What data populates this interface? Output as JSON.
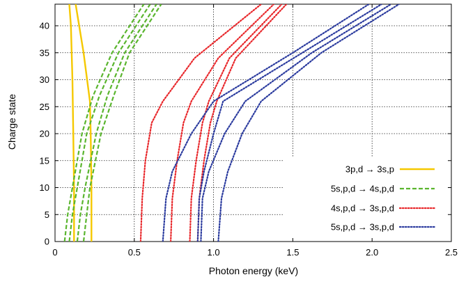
{
  "chart_data": {
    "type": "line",
    "title": "",
    "xlabel": "Photon energy (keV)",
    "ylabel": "Charge state",
    "xlim": [
      0,
      2.5
    ],
    "ylim": [
      0,
      44
    ],
    "xticks": [
      0,
      0.5,
      1.0,
      1.5,
      2.0,
      2.5
    ],
    "xtick_labels": [
      "0",
      "0.5",
      "1.0",
      "1.5",
      "2.0",
      "2.5"
    ],
    "yticks": [
      0,
      5,
      10,
      15,
      20,
      25,
      30,
      35,
      40
    ],
    "ytick_labels": [
      "0",
      "5",
      "10",
      "15",
      "20",
      "25",
      "30",
      "35",
      "40"
    ],
    "grid": true,
    "legend_position": "bottom-right",
    "series": [
      {
        "name": "3p,d → 3s,p",
        "color": "#f5c800",
        "style": "solid",
        "curves": [
          [
            [
              0.12,
              0
            ],
            [
              0.12,
              10
            ],
            [
              0.115,
              20
            ],
            [
              0.11,
              30
            ],
            [
              0.1,
              40
            ],
            [
              0.09,
              44
            ]
          ],
          [
            [
              0.23,
              0
            ],
            [
              0.23,
              10
            ],
            [
              0.225,
              20
            ],
            [
              0.22,
              26
            ],
            [
              0.18,
              35
            ],
            [
              0.13,
              44
            ]
          ]
        ]
      },
      {
        "name": "5s,p,d → 4s,p,d",
        "color": "#5ab52e",
        "style": "dashed",
        "curves": [
          [
            [
              0.06,
              0
            ],
            [
              0.08,
              5
            ],
            [
              0.11,
              10
            ],
            [
              0.17,
              20
            ],
            [
              0.24,
              27
            ],
            [
              0.36,
              35
            ],
            [
              0.56,
              44
            ]
          ],
          [
            [
              0.09,
              0
            ],
            [
              0.11,
              5
            ],
            [
              0.14,
              10
            ],
            [
              0.2,
              20
            ],
            [
              0.28,
              27
            ],
            [
              0.4,
              35
            ],
            [
              0.6,
              44
            ]
          ],
          [
            [
              0.14,
              0
            ],
            [
              0.16,
              5
            ],
            [
              0.19,
              10
            ],
            [
              0.26,
              20
            ],
            [
              0.33,
              27
            ],
            [
              0.44,
              35
            ],
            [
              0.64,
              44
            ]
          ],
          [
            [
              0.18,
              0
            ],
            [
              0.2,
              5
            ],
            [
              0.22,
              10
            ],
            [
              0.29,
              20
            ],
            [
              0.37,
              27
            ],
            [
              0.47,
              35
            ],
            [
              0.67,
              44
            ]
          ]
        ]
      },
      {
        "name": "4s,p,d → 3s,p,d",
        "color": "#e8262a",
        "style": "dotted",
        "curves": [
          [
            [
              0.54,
              0
            ],
            [
              0.55,
              8
            ],
            [
              0.57,
              15
            ],
            [
              0.61,
              22
            ],
            [
              0.68,
              26
            ],
            [
              0.88,
              34
            ],
            [
              1.3,
              44
            ]
          ],
          [
            [
              0.73,
              0
            ],
            [
              0.74,
              8
            ],
            [
              0.77,
              15
            ],
            [
              0.81,
              22
            ],
            [
              0.86,
              26
            ],
            [
              1.03,
              34
            ],
            [
              1.38,
              44
            ]
          ],
          [
            [
              0.85,
              0
            ],
            [
              0.86,
              8
            ],
            [
              0.89,
              15
            ],
            [
              0.93,
              22
            ],
            [
              0.97,
              26
            ],
            [
              1.1,
              34
            ],
            [
              1.43,
              44
            ]
          ],
          [
            [
              0.9,
              0
            ],
            [
              0.91,
              8
            ],
            [
              0.94,
              15
            ],
            [
              0.98,
              22
            ],
            [
              1.02,
              26
            ],
            [
              1.14,
              34
            ],
            [
              1.46,
              44
            ]
          ]
        ]
      },
      {
        "name": "5s,p,d → 3s,p,d",
        "color": "#2a3a9e",
        "style": "dotted",
        "curves": [
          [
            [
              0.68,
              0
            ],
            [
              0.7,
              8
            ],
            [
              0.74,
              13
            ],
            [
              0.86,
              20
            ],
            [
              1.0,
              26
            ],
            [
              1.5,
              35
            ],
            [
              1.98,
              44
            ]
          ],
          [
            [
              0.9,
              0
            ],
            [
              0.91,
              8
            ],
            [
              0.94,
              13
            ],
            [
              1.0,
              20
            ],
            [
              1.06,
              26
            ],
            [
              1.56,
              35
            ],
            [
              2.06,
              44
            ]
          ],
          [
            [
              0.92,
              0
            ],
            [
              0.93,
              8
            ],
            [
              0.97,
              13
            ],
            [
              1.07,
              20
            ],
            [
              1.2,
              26
            ],
            [
              1.62,
              35
            ],
            [
              2.12,
              44
            ]
          ],
          [
            [
              1.03,
              0
            ],
            [
              1.05,
              8
            ],
            [
              1.09,
              13
            ],
            [
              1.18,
              20
            ],
            [
              1.3,
              26
            ],
            [
              1.68,
              35
            ],
            [
              2.17,
              44
            ]
          ]
        ]
      }
    ]
  }
}
